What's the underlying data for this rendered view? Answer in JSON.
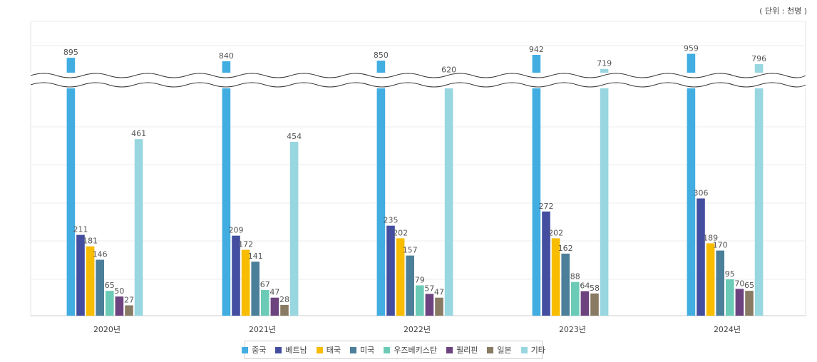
{
  "unit_label": "( 단위 : 천명 )",
  "chart_data": {
    "type": "bar",
    "categories": [
      "2020년",
      "2021년",
      "2022년",
      "2023년",
      "2024년"
    ],
    "axis_break": true,
    "series": [
      {
        "name": "중국",
        "color": "#41ade1",
        "values": [
          895,
          840,
          850,
          942,
          959
        ]
      },
      {
        "name": "베트남",
        "color": "#434ea0",
        "values": [
          211,
          209,
          235,
          272,
          306
        ]
      },
      {
        "name": "태국",
        "color": "#f8bc00",
        "values": [
          181,
          172,
          202,
          202,
          189
        ]
      },
      {
        "name": "미국",
        "color": "#4c7f99",
        "values": [
          146,
          141,
          157,
          162,
          170
        ]
      },
      {
        "name": "우즈베키스탄",
        "color": "#6ccbb7",
        "values": [
          65,
          67,
          79,
          88,
          95
        ]
      },
      {
        "name": "필리핀",
        "color": "#6c437f",
        "values": [
          50,
          47,
          57,
          64,
          70
        ]
      },
      {
        "name": "일본",
        "color": "#887a63",
        "values": [
          27,
          28,
          47,
          58,
          65
        ]
      },
      {
        "name": "기타",
        "color": "#98d6e0",
        "values": [
          461,
          454,
          620,
          719,
          796
        ]
      }
    ],
    "legend_position": "bottom",
    "grid": true
  }
}
